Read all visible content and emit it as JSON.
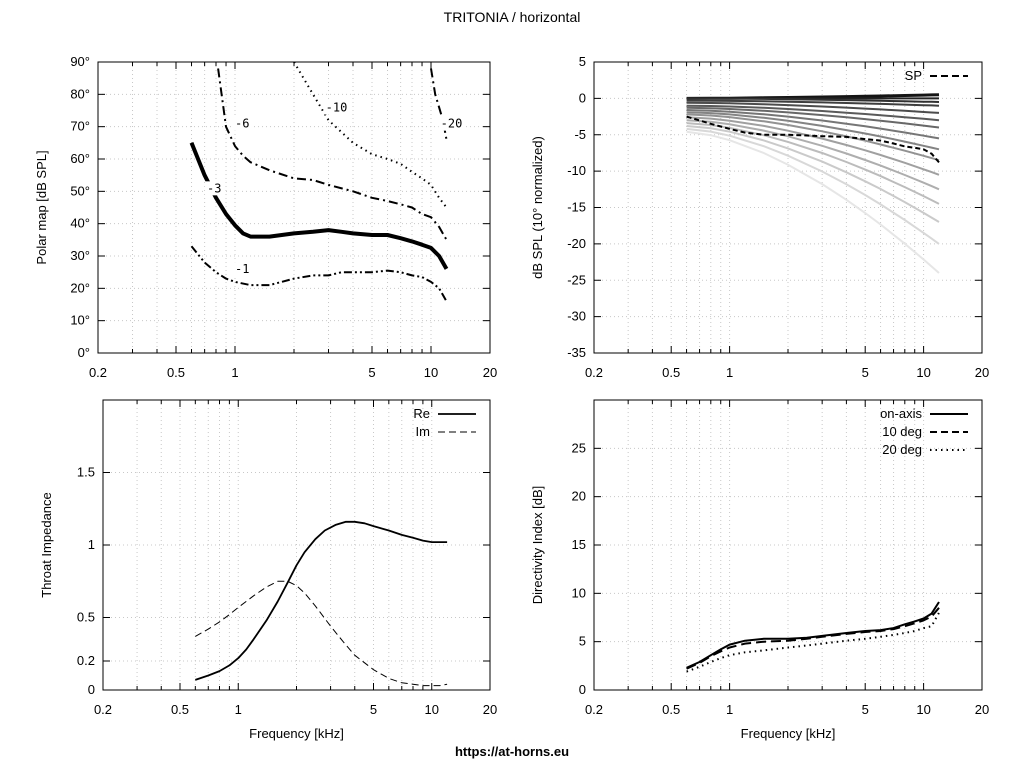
{
  "page": {
    "title": "TRITONIA / horizontal",
    "footer": "https://at-horns.eu"
  },
  "chart_data": [
    {
      "id": "polar",
      "type": "contour",
      "xlabel": "",
      "ylabel": "Polar map [dB SPL]",
      "xscale": "log",
      "xlim": [
        0.2,
        20
      ],
      "xticks": [
        "0.2",
        "0.5",
        "1",
        "5",
        "10",
        "20"
      ],
      "ylim": [
        0,
        90
      ],
      "yticks": [
        "0°",
        "10°",
        "20°",
        "30°",
        "40°",
        "50°",
        "60°",
        "70°",
        "80°",
        "90°"
      ],
      "grid": true,
      "contours": [
        {
          "name": "-1",
          "style": "dash-dot-dot",
          "label": "-1",
          "label_at": [
            1.0,
            25
          ],
          "x": [
            0.6,
            0.7,
            0.8,
            0.9,
            1.0,
            1.2,
            1.5,
            2.0,
            2.5,
            3.0,
            3.5,
            4.0,
            5.0,
            6.0,
            7.0,
            8.0,
            9.0,
            10.0,
            11.0,
            12.0
          ],
          "y": [
            33,
            28,
            25,
            23,
            22,
            21,
            21,
            23,
            24,
            24,
            25,
            25,
            25,
            25.5,
            25,
            24,
            23.5,
            22,
            20,
            16
          ]
        },
        {
          "name": "-3",
          "style": "thick",
          "label": "-3",
          "label_at": [
            0.72,
            50
          ],
          "x": [
            0.6,
            0.7,
            0.8,
            0.9,
            1.0,
            1.1,
            1.2,
            1.5,
            2.0,
            2.5,
            3.0,
            3.5,
            4.0,
            5.0,
            6.0,
            7.0,
            8.0,
            9.0,
            10.0,
            11.0,
            12.0
          ],
          "y": [
            65,
            55,
            48,
            43,
            39.5,
            37,
            36,
            36,
            37,
            37.5,
            38,
            37.5,
            37,
            36.5,
            36.5,
            35.5,
            34.5,
            33.5,
            32.5,
            30,
            26
          ]
        },
        {
          "name": "-6",
          "style": "dash-dot",
          "label": "-6",
          "label_at": [
            1.0,
            70
          ],
          "x": [
            0.82,
            0.9,
            1.0,
            1.1,
            1.2,
            1.5,
            2.0,
            2.5,
            3.0,
            4.0,
            5.0,
            6.0,
            7.0,
            8.0,
            9.0,
            10.0,
            11.0,
            12.0
          ],
          "y": [
            88,
            70,
            64,
            61,
            59,
            56.5,
            54,
            53.5,
            52,
            50,
            48,
            47,
            46,
            45,
            43,
            42,
            39,
            35
          ]
        },
        {
          "name": "-10",
          "style": "dotted",
          "label": "-10",
          "label_at": [
            2.9,
            75
          ],
          "x": [
            2.0,
            2.5,
            3.0,
            4.0,
            5.0,
            6.0,
            7.0,
            8.0,
            9.0,
            10.0,
            11.0,
            12.0
          ],
          "y": [
            90,
            80,
            72,
            65,
            61.5,
            60,
            58.5,
            56,
            54,
            52,
            48,
            45
          ]
        },
        {
          "name": "-20",
          "style": "dash-dot",
          "label": "-20",
          "label_at": [
            11.2,
            70
          ],
          "x": [
            10.0,
            10.5,
            11.0,
            11.5,
            12.0
          ],
          "y": [
            88,
            80,
            76,
            72,
            66
          ]
        }
      ]
    },
    {
      "id": "spl",
      "type": "line",
      "xlabel": "",
      "ylabel": "dB SPL (10° normalized)",
      "xscale": "log",
      "xlim": [
        0.2,
        20
      ],
      "xticks": [
        "0.2",
        "0.5",
        "1",
        "5",
        "10",
        "20"
      ],
      "ylim": [
        -35,
        5
      ],
      "yticks": [
        "-35",
        "-30",
        "-25",
        "-20",
        "-15",
        "-10",
        "-5",
        "0",
        "5"
      ],
      "grid": true,
      "legend": {
        "position": "top-right",
        "entries": [
          "SP"
        ]
      },
      "x": [
        0.6,
        0.8,
        1.0,
        1.5,
        2.0,
        3.0,
        4.0,
        5.0,
        6.0,
        8.0,
        10.0,
        11.0,
        12.0
      ],
      "family_note_free": true,
      "family_start": [
        0,
        0,
        0,
        -0.3,
        -0.6,
        -1.0,
        -1.3,
        -1.6,
        -1.9,
        -2.2,
        -2.6,
        -3.0,
        -3.4,
        -3.8,
        -4.2,
        -4.6
      ],
      "family_end": [
        0.5,
        0,
        -0.5,
        -1.0,
        -2.0,
        -3.0,
        -4.0,
        -5.5,
        -7.0,
        -8.5,
        -10.5,
        -12.5,
        -14.5,
        -17.0,
        -20.0,
        -24.0
      ],
      "sp": {
        "name": "SP",
        "x": [
          0.6,
          0.8,
          1.0,
          1.2,
          1.5,
          2.0,
          2.5,
          3.0,
          4.0,
          5.0,
          6.0,
          7.0,
          8.0,
          9.0,
          10.0,
          11.0,
          12.0
        ],
        "y": [
          -2.5,
          -3.5,
          -4.2,
          -4.7,
          -5.0,
          -5.0,
          -5.1,
          -5.2,
          -5.3,
          -5.6,
          -5.8,
          -6.2,
          -6.6,
          -6.8,
          -7.0,
          -7.6,
          -8.8
        ]
      }
    },
    {
      "id": "impedance",
      "type": "line",
      "xlabel": "Frequency [kHz]",
      "ylabel": "Throat Impedance",
      "xscale": "log",
      "xlim": [
        0.2,
        20
      ],
      "xticks": [
        "0.2",
        "0.5",
        "1",
        "5",
        "10",
        "20"
      ],
      "ylim": [
        0,
        2
      ],
      "yticks": [
        "0",
        "0.2",
        "0.5",
        "1",
        "1.5"
      ],
      "ytick_values": [
        0,
        0.2,
        0.5,
        1,
        1.5
      ],
      "grid": true,
      "legend": {
        "position": "top-right",
        "entries": [
          "Re",
          "Im"
        ]
      },
      "series": [
        {
          "name": "Re",
          "style": "solid",
          "x": [
            0.6,
            0.7,
            0.8,
            0.9,
            1.0,
            1.1,
            1.2,
            1.4,
            1.6,
            1.8,
            2.0,
            2.2,
            2.5,
            2.8,
            3.2,
            3.6,
            4.0,
            4.5,
            5.0,
            6.0,
            7.0,
            8.0,
            9.0,
            10.0,
            11.0,
            12.0
          ],
          "y": [
            0.07,
            0.1,
            0.13,
            0.17,
            0.22,
            0.28,
            0.35,
            0.48,
            0.61,
            0.74,
            0.86,
            0.95,
            1.04,
            1.1,
            1.14,
            1.16,
            1.16,
            1.15,
            1.13,
            1.1,
            1.07,
            1.05,
            1.03,
            1.02,
            1.02,
            1.02
          ]
        },
        {
          "name": "Im",
          "style": "dashed",
          "x": [
            0.6,
            0.7,
            0.8,
            0.9,
            1.0,
            1.2,
            1.4,
            1.6,
            1.8,
            2.0,
            2.2,
            2.5,
            3.0,
            3.5,
            4.0,
            5.0,
            6.0,
            7.0,
            8.0,
            9.0,
            10.0,
            11.0,
            12.0
          ],
          "y": [
            0.37,
            0.42,
            0.47,
            0.52,
            0.57,
            0.65,
            0.71,
            0.75,
            0.75,
            0.72,
            0.67,
            0.58,
            0.44,
            0.33,
            0.24,
            0.14,
            0.08,
            0.05,
            0.04,
            0.03,
            0.03,
            0.03,
            0.04
          ]
        }
      ]
    },
    {
      "id": "di",
      "type": "line",
      "xlabel": "Frequency [kHz]",
      "ylabel": "Directivity Index [dB]",
      "xscale": "log",
      "xlim": [
        0.2,
        20
      ],
      "xticks": [
        "0.2",
        "0.5",
        "1",
        "5",
        "10",
        "20"
      ],
      "ylim": [
        0,
        30
      ],
      "yticks": [
        "0",
        "5",
        "10",
        "15",
        "20",
        "25"
      ],
      "grid": true,
      "legend": {
        "position": "top-right",
        "entries": [
          "on-axis",
          "10 deg",
          "20 deg"
        ]
      },
      "series": [
        {
          "name": "on-axis",
          "style": "solid",
          "x": [
            0.6,
            0.7,
            0.8,
            0.9,
            1.0,
            1.2,
            1.5,
            2.0,
            2.5,
            3.0,
            4.0,
            5.0,
            6.0,
            7.0,
            8.0,
            9.0,
            10.0,
            11.0,
            12.0
          ],
          "y": [
            2.3,
            2.9,
            3.6,
            4.2,
            4.7,
            5.1,
            5.3,
            5.3,
            5.4,
            5.6,
            5.9,
            6.1,
            6.2,
            6.4,
            6.8,
            7.1,
            7.4,
            7.9,
            9.1
          ]
        },
        {
          "name": "10 deg",
          "style": "dashed",
          "x": [
            0.6,
            0.7,
            0.8,
            0.9,
            1.0,
            1.2,
            1.5,
            2.0,
            2.5,
            3.0,
            4.0,
            5.0,
            6.0,
            7.0,
            8.0,
            9.0,
            10.0,
            11.0,
            12.0
          ],
          "y": [
            2.2,
            2.8,
            3.5,
            4.0,
            4.4,
            4.8,
            5.0,
            5.1,
            5.3,
            5.5,
            5.8,
            6.0,
            6.1,
            6.3,
            6.6,
            6.9,
            7.2,
            7.6,
            8.5
          ]
        },
        {
          "name": "20 deg",
          "style": "dotted",
          "x": [
            0.6,
            0.7,
            0.8,
            0.9,
            1.0,
            1.2,
            1.5,
            2.0,
            2.5,
            3.0,
            4.0,
            5.0,
            6.0,
            7.0,
            8.0,
            9.0,
            10.0,
            11.0,
            12.0
          ],
          "y": [
            1.9,
            2.4,
            2.9,
            3.3,
            3.6,
            3.9,
            4.1,
            4.4,
            4.6,
            4.8,
            5.1,
            5.3,
            5.5,
            5.7,
            5.9,
            6.1,
            6.4,
            6.6,
            8.0
          ]
        }
      ]
    }
  ]
}
